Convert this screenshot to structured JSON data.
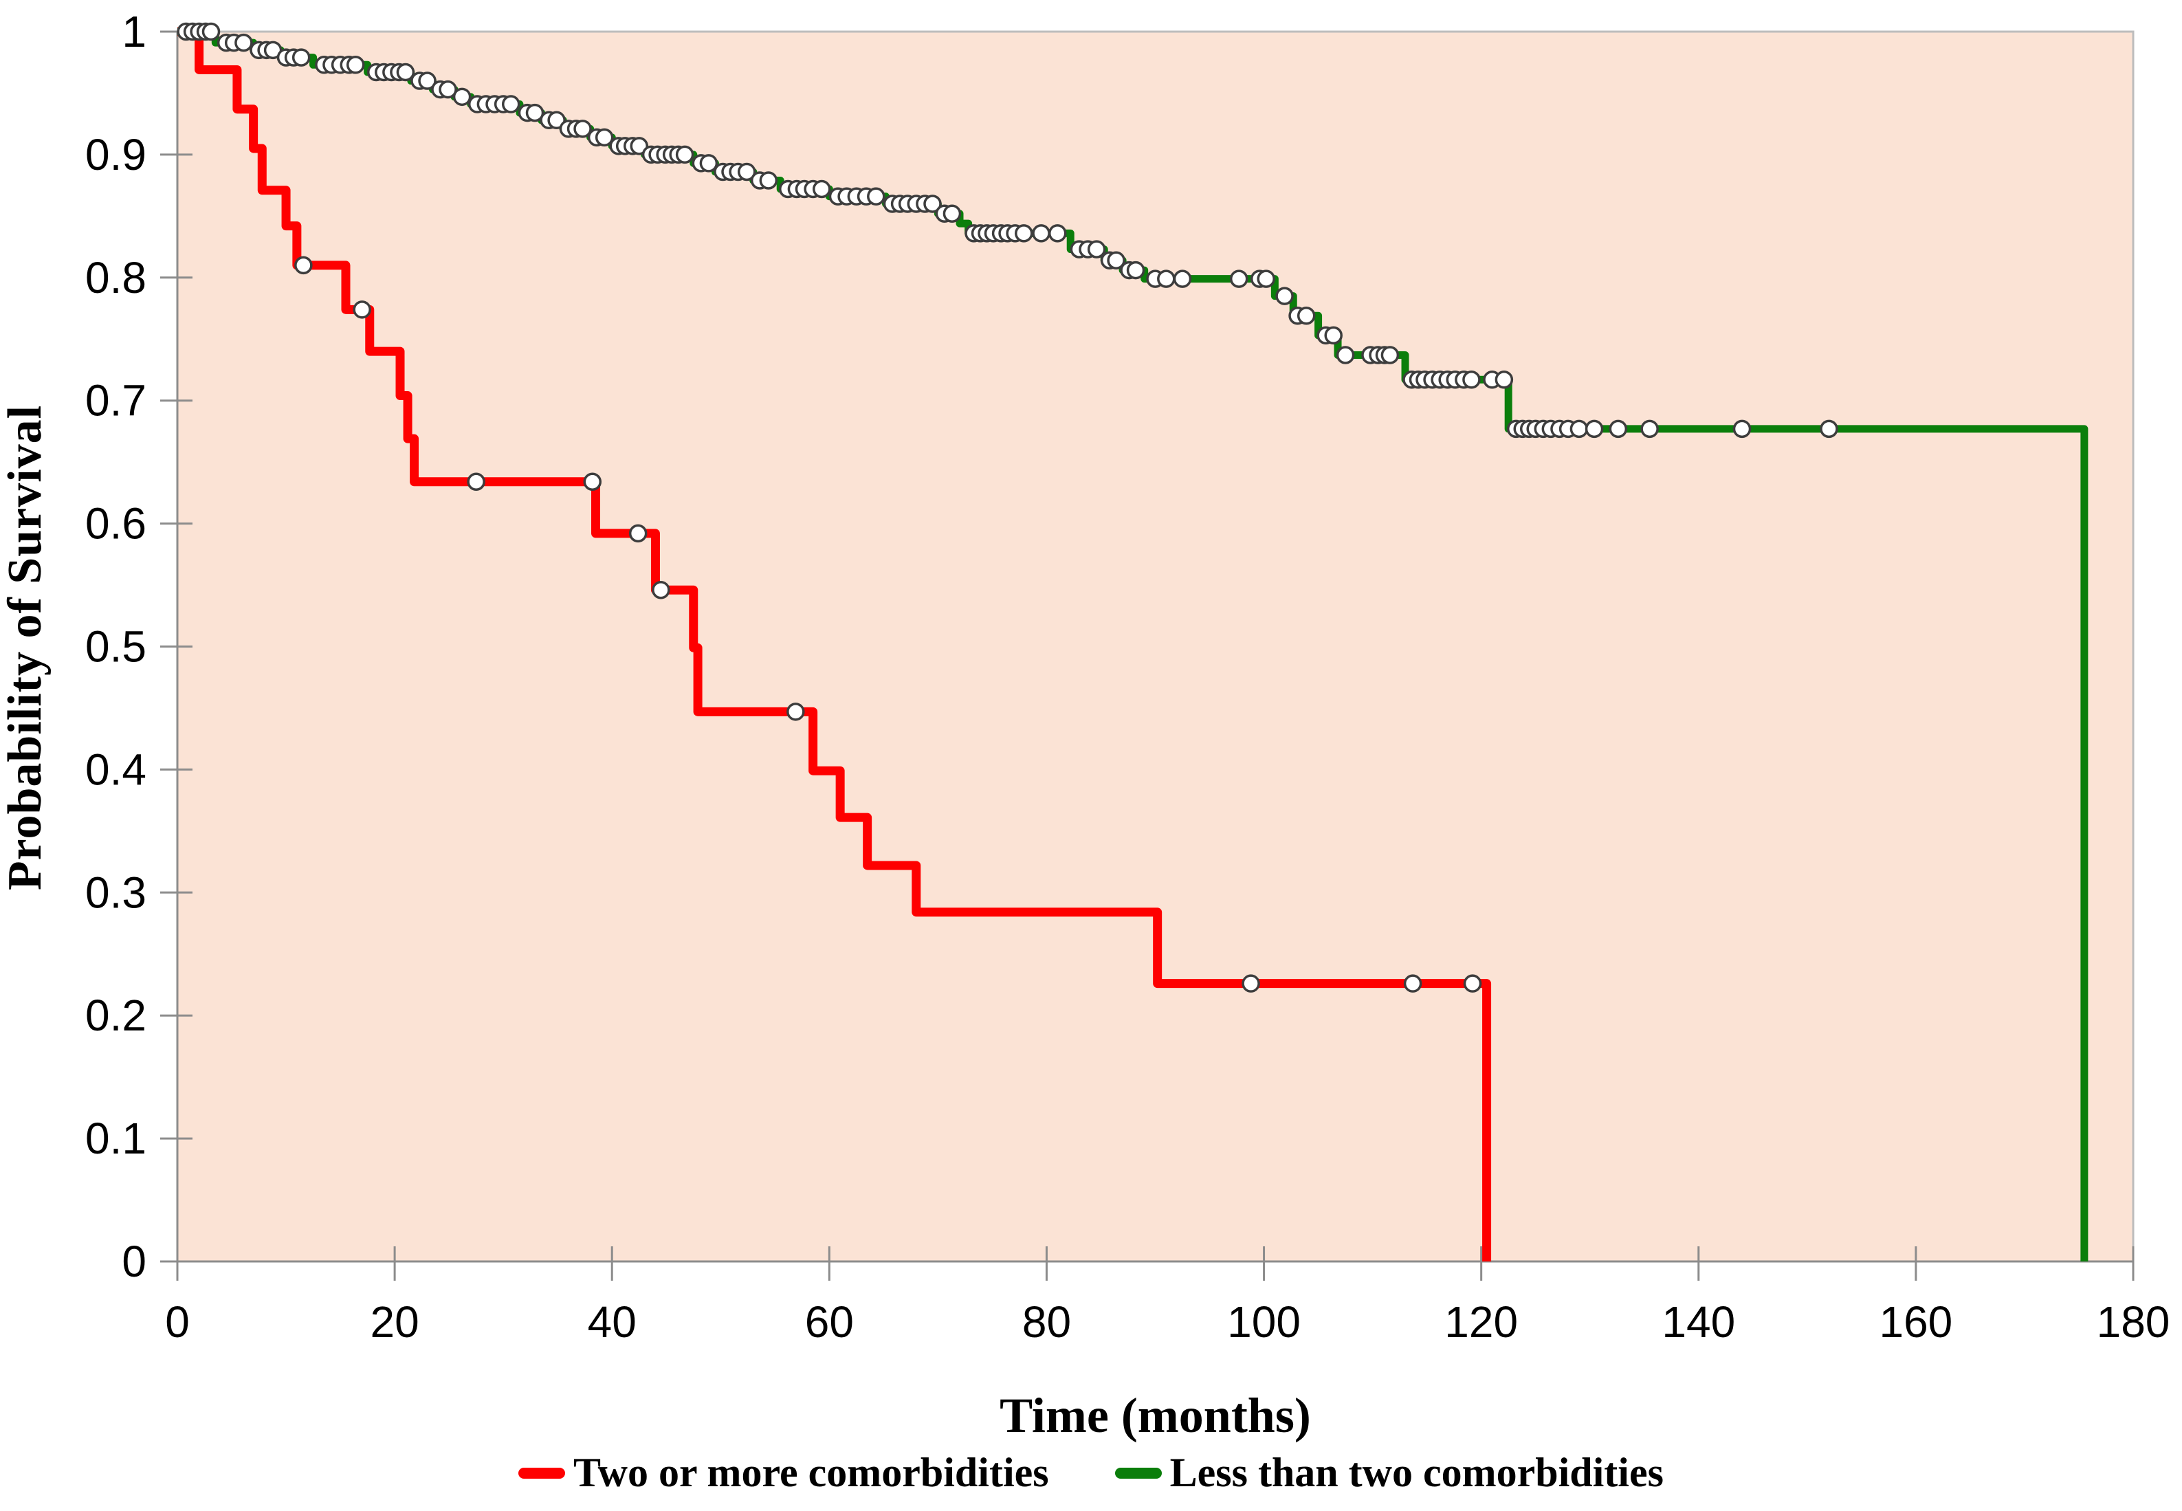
{
  "figure": {
    "background": "#ffffff",
    "plot_background": "#FBE3D5",
    "border_color": "#BDBDBD",
    "axis_color": "#8C8C8C",
    "tick_color": "#8C8C8C"
  },
  "chart_data": {
    "type": "line",
    "subtype": "kaplan-meier-step-survival",
    "title": "",
    "xlabel": "Time (months)",
    "ylabel": "Probability of Survival",
    "xlim": [
      0,
      180
    ],
    "ylim": [
      0,
      1
    ],
    "x_ticks": [
      0,
      20,
      40,
      60,
      80,
      100,
      120,
      140,
      160,
      180
    ],
    "x_tick_labels": [
      "0",
      "20",
      "40",
      "60",
      "80",
      "100",
      "120",
      "140",
      "160",
      "180"
    ],
    "y_ticks": [
      1,
      0.9,
      0.8,
      0.7,
      0.6,
      0.5,
      0.4,
      0.3,
      0.2,
      0.1,
      0
    ],
    "y_tick_labels": [
      "1",
      "0.9",
      "0.8",
      "0.7",
      "0.6",
      "0.5",
      "0.4",
      "0.3",
      "0.2",
      "0.1",
      "0"
    ],
    "grid": false,
    "legend_position": "bottom",
    "censor_marker": {
      "shape": "circle",
      "fill": "#FFFFFF",
      "stroke": "#3D3D3D",
      "radius": 11.5,
      "stroke_width": 3.5
    },
    "series": [
      {
        "name": "Two or more comorbidities",
        "color": "#FE0000",
        "line_width": 13,
        "steps": [
          [
            0,
            1
          ],
          [
            2,
            0.969
          ],
          [
            5.5,
            0.937
          ],
          [
            7,
            0.905
          ],
          [
            7.8,
            0.871
          ],
          [
            10,
            0.842
          ],
          [
            11,
            0.81
          ],
          [
            15.5,
            0.774
          ],
          [
            17.7,
            0.74
          ],
          [
            20.5,
            0.704
          ],
          [
            21.2,
            0.669
          ],
          [
            21.8,
            0.634
          ],
          [
            38.5,
            0.592
          ],
          [
            44,
            0.546
          ],
          [
            47.5,
            0.499
          ],
          [
            47.9,
            0.447
          ],
          [
            58.5,
            0.399
          ],
          [
            61,
            0.361
          ],
          [
            63.5,
            0.322
          ],
          [
            68,
            0.284
          ],
          [
            90.2,
            0.226
          ],
          [
            120.5,
            0
          ]
        ],
        "censors": [
          [
            11.6,
            0.81
          ],
          [
            17,
            0.774
          ],
          [
            27.5,
            0.634
          ],
          [
            38.2,
            0.634
          ],
          [
            42.4,
            0.592
          ],
          [
            44.5,
            0.546
          ],
          [
            56.9,
            0.447
          ],
          [
            98.8,
            0.226
          ],
          [
            113.7,
            0.226
          ],
          [
            119.2,
            0.226
          ]
        ]
      },
      {
        "name": "Less than two comorbidities",
        "color": "#0B7E0B",
        "line_width": 11,
        "steps": [
          [
            0,
            1
          ],
          [
            3.5,
            0.991
          ],
          [
            7,
            0.985
          ],
          [
            9.5,
            0.979
          ],
          [
            12.5,
            0.973
          ],
          [
            17.5,
            0.967
          ],
          [
            21.5,
            0.96
          ],
          [
            23.5,
            0.953
          ],
          [
            25.5,
            0.947
          ],
          [
            27,
            0.941
          ],
          [
            31.5,
            0.934
          ],
          [
            33.5,
            0.928
          ],
          [
            35.5,
            0.921
          ],
          [
            38,
            0.914
          ],
          [
            40,
            0.907
          ],
          [
            43,
            0.9
          ],
          [
            47.5,
            0.893
          ],
          [
            49.5,
            0.886
          ],
          [
            53,
            0.879
          ],
          [
            55.5,
            0.872
          ],
          [
            60,
            0.866
          ],
          [
            65.2,
            0.86
          ],
          [
            70,
            0.852
          ],
          [
            72,
            0.844
          ],
          [
            72.8,
            0.836
          ],
          [
            82.2,
            0.823
          ],
          [
            85.3,
            0.814
          ],
          [
            87,
            0.806
          ],
          [
            89,
            0.799
          ],
          [
            101,
            0.785
          ],
          [
            102.7,
            0.769
          ],
          [
            105,
            0.753
          ],
          [
            106.8,
            0.737
          ],
          [
            113,
            0.717
          ],
          [
            122.5,
            0.677
          ],
          [
            175.5,
            0
          ]
        ],
        "censors": [
          [
            0.8,
            1
          ],
          [
            1.4,
            1
          ],
          [
            2,
            1
          ],
          [
            2.6,
            1
          ],
          [
            3.1,
            1
          ],
          [
            4.5,
            0.991
          ],
          [
            5.2,
            0.991
          ],
          [
            6.1,
            0.991
          ],
          [
            7.5,
            0.985
          ],
          [
            8.2,
            0.985
          ],
          [
            8.8,
            0.985
          ],
          [
            10,
            0.979
          ],
          [
            10.7,
            0.979
          ],
          [
            11.4,
            0.979
          ],
          [
            13.5,
            0.973
          ],
          [
            14.2,
            0.973
          ],
          [
            15,
            0.973
          ],
          [
            15.8,
            0.973
          ],
          [
            16.4,
            0.973
          ],
          [
            18.3,
            0.967
          ],
          [
            19,
            0.967
          ],
          [
            19.7,
            0.967
          ],
          [
            20.4,
            0.967
          ],
          [
            21,
            0.967
          ],
          [
            22.3,
            0.96
          ],
          [
            23,
            0.96
          ],
          [
            24.2,
            0.953
          ],
          [
            24.9,
            0.953
          ],
          [
            26.2,
            0.947
          ],
          [
            27.6,
            0.941
          ],
          [
            28.4,
            0.941
          ],
          [
            29.2,
            0.941
          ],
          [
            30,
            0.941
          ],
          [
            30.7,
            0.941
          ],
          [
            32.2,
            0.934
          ],
          [
            32.9,
            0.934
          ],
          [
            34.2,
            0.928
          ],
          [
            34.9,
            0.928
          ],
          [
            36,
            0.921
          ],
          [
            36.7,
            0.921
          ],
          [
            37.3,
            0.921
          ],
          [
            38.6,
            0.914
          ],
          [
            39.3,
            0.914
          ],
          [
            40.6,
            0.907
          ],
          [
            41.2,
            0.907
          ],
          [
            41.9,
            0.907
          ],
          [
            42.5,
            0.907
          ],
          [
            43.6,
            0.9
          ],
          [
            44.2,
            0.9
          ],
          [
            44.9,
            0.9
          ],
          [
            45.5,
            0.9
          ],
          [
            46.1,
            0.9
          ],
          [
            46.7,
            0.9
          ],
          [
            48.2,
            0.893
          ],
          [
            48.9,
            0.893
          ],
          [
            50.2,
            0.886
          ],
          [
            50.9,
            0.886
          ],
          [
            51.6,
            0.886
          ],
          [
            52.4,
            0.886
          ],
          [
            53.6,
            0.879
          ],
          [
            54.4,
            0.879
          ],
          [
            56.2,
            0.872
          ],
          [
            57,
            0.872
          ],
          [
            57.7,
            0.872
          ],
          [
            58.5,
            0.872
          ],
          [
            59.3,
            0.872
          ],
          [
            60.8,
            0.866
          ],
          [
            61.6,
            0.866
          ],
          [
            62.5,
            0.866
          ],
          [
            63.4,
            0.866
          ],
          [
            64.3,
            0.866
          ],
          [
            65.8,
            0.86
          ],
          [
            66.5,
            0.86
          ],
          [
            67.2,
            0.86
          ],
          [
            68,
            0.86
          ],
          [
            68.8,
            0.86
          ],
          [
            69.5,
            0.86
          ],
          [
            70.6,
            0.852
          ],
          [
            71.3,
            0.852
          ],
          [
            73.3,
            0.836
          ],
          [
            73.9,
            0.836
          ],
          [
            74.5,
            0.836
          ],
          [
            75.1,
            0.836
          ],
          [
            75.8,
            0.836
          ],
          [
            76.4,
            0.836
          ],
          [
            77.1,
            0.836
          ],
          [
            77.9,
            0.836
          ],
          [
            79.5,
            0.836
          ],
          [
            81,
            0.836
          ],
          [
            83,
            0.823
          ],
          [
            83.8,
            0.823
          ],
          [
            84.6,
            0.823
          ],
          [
            85.8,
            0.814
          ],
          [
            86.4,
            0.814
          ],
          [
            87.6,
            0.806
          ],
          [
            88.2,
            0.806
          ],
          [
            90,
            0.799
          ],
          [
            91,
            0.799
          ],
          [
            92.5,
            0.799
          ],
          [
            97.7,
            0.799
          ],
          [
            99.6,
            0.799
          ],
          [
            100.2,
            0.799
          ],
          [
            101.9,
            0.785
          ],
          [
            103.1,
            0.769
          ],
          [
            103.9,
            0.769
          ],
          [
            105.7,
            0.753
          ],
          [
            106.4,
            0.753
          ],
          [
            107.5,
            0.737
          ],
          [
            109.8,
            0.737
          ],
          [
            110.5,
            0.737
          ],
          [
            111.1,
            0.737
          ],
          [
            111.6,
            0.737
          ],
          [
            113.6,
            0.717
          ],
          [
            114.2,
            0.717
          ],
          [
            114.8,
            0.717
          ],
          [
            115.5,
            0.717
          ],
          [
            116.2,
            0.717
          ],
          [
            116.9,
            0.717
          ],
          [
            117.6,
            0.717
          ],
          [
            118.4,
            0.717
          ],
          [
            119.1,
            0.717
          ],
          [
            121,
            0.717
          ],
          [
            122.1,
            0.717
          ],
          [
            123.2,
            0.677
          ],
          [
            123.8,
            0.677
          ],
          [
            124.4,
            0.677
          ],
          [
            125,
            0.677
          ],
          [
            125.7,
            0.677
          ],
          [
            126.4,
            0.677
          ],
          [
            127.2,
            0.677
          ],
          [
            128,
            0.677
          ],
          [
            129,
            0.677
          ],
          [
            130.4,
            0.677
          ],
          [
            132.6,
            0.677
          ],
          [
            135.5,
            0.677
          ],
          [
            144,
            0.677
          ],
          [
            152,
            0.677
          ]
        ]
      }
    ]
  }
}
